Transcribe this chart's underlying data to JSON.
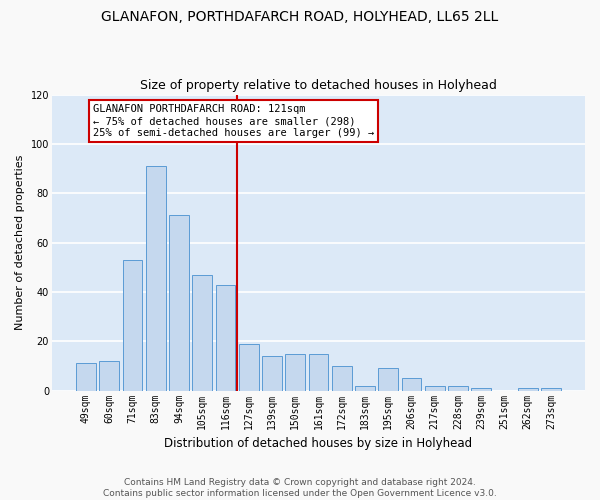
{
  "title1": "GLANAFON, PORTHDAFARCH ROAD, HOLYHEAD, LL65 2LL",
  "title2": "Size of property relative to detached houses in Holyhead",
  "xlabel": "Distribution of detached houses by size in Holyhead",
  "ylabel": "Number of detached properties",
  "bar_labels": [
    "49sqm",
    "60sqm",
    "71sqm",
    "83sqm",
    "94sqm",
    "105sqm",
    "116sqm",
    "127sqm",
    "139sqm",
    "150sqm",
    "161sqm",
    "172sqm",
    "183sqm",
    "195sqm",
    "206sqm",
    "217sqm",
    "228sqm",
    "239sqm",
    "251sqm",
    "262sqm",
    "273sqm"
  ],
  "bar_values": [
    11,
    12,
    53,
    91,
    71,
    47,
    43,
    19,
    14,
    15,
    15,
    10,
    2,
    9,
    5,
    2,
    2,
    1,
    0,
    1,
    1
  ],
  "bar_color": "#c5d8ee",
  "bar_edge_color": "#5b9bd5",
  "vline_x": 6.5,
  "vline_color": "#cc0000",
  "annotation_text": "GLANAFON PORTHDAFARCH ROAD: 121sqm\n← 75% of detached houses are smaller (298)\n25% of semi-detached houses are larger (99) →",
  "annotation_box_color": "#ffffff",
  "annotation_box_edge": "#cc0000",
  "ylim": [
    0,
    120
  ],
  "yticks": [
    0,
    20,
    40,
    60,
    80,
    100,
    120
  ],
  "footnote": "Contains HM Land Registry data © Crown copyright and database right 2024.\nContains public sector information licensed under the Open Government Licence v3.0.",
  "fig_bg_color": "#f9f9f9",
  "ax_bg_color": "#dce9f7",
  "grid_color": "#ffffff",
  "title1_fontsize": 10,
  "title2_fontsize": 9,
  "xlabel_fontsize": 8.5,
  "ylabel_fontsize": 8,
  "tick_fontsize": 7,
  "footnote_fontsize": 6.5,
  "annot_fontsize": 7.5
}
